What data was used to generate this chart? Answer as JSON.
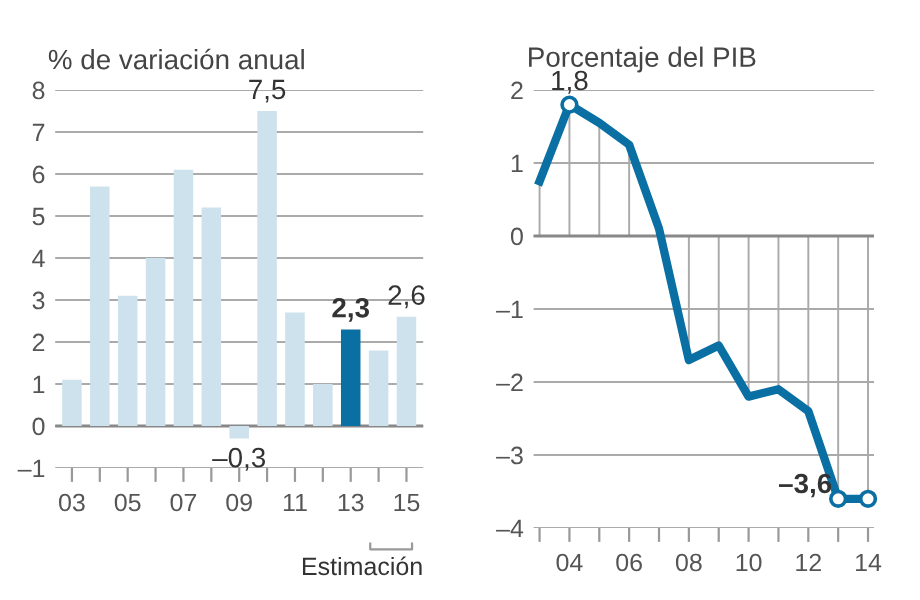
{
  "chart_data": [
    {
      "type": "bar",
      "title": "% de variación anual",
      "categories": [
        "03",
        null,
        "05",
        null,
        "07",
        null,
        "09",
        null,
        "11",
        null,
        "13",
        null,
        "15"
      ],
      "values": [
        1.1,
        5.7,
        3.1,
        4.0,
        6.1,
        5.2,
        -0.3,
        7.5,
        2.7,
        1.0,
        2.3,
        1.8,
        2.6
      ],
      "colors": [
        "#cde2ec",
        "#cde2ec",
        "#cde2ec",
        "#cde2ec",
        "#cde2ec",
        "#cde2ec",
        "#cde2ec",
        "#cde2ec",
        "#cde2ec",
        "#cde2ec",
        "#0a6fa3",
        "#cde2ec",
        "#cde2ec"
      ],
      "value_labels": [
        null,
        null,
        null,
        null,
        null,
        null,
        "–0,3",
        "7,5",
        null,
        null,
        "2,3",
        null,
        "2,6"
      ],
      "ylim": [
        -1,
        8
      ],
      "yticks": [
        {
          "value": -1,
          "label": "–1"
        },
        0,
        1,
        2,
        3,
        4,
        5,
        6,
        7,
        8
      ],
      "grid": "y",
      "annotations": [
        "Estimación"
      ]
    },
    {
      "type": "line",
      "title": "Porcentaje del PIB",
      "series": [
        {
          "color": "#0a6fa3",
          "x": [
            2003,
            2004,
            2005,
            2006,
            2007,
            2008,
            2009,
            2010,
            2011,
            2012,
            2013,
            2014
          ],
          "values": [
            0.75,
            1.8,
            1.55,
            1.25,
            0.1,
            -1.7,
            -1.5,
            -2.2,
            -2.1,
            -2.4,
            -3.6,
            -3.6
          ],
          "errors": [
            [
              0,
              0.75
            ],
            [
              0,
              1.8
            ],
            [
              0,
              1.55
            ],
            [
              0,
              1.25
            ],
            [
              0,
              0.1
            ],
            [
              -1.7,
              0
            ],
            [
              -1.5,
              0
            ],
            [
              -2.2,
              0
            ],
            [
              -2.1,
              0
            ],
            [
              -2.4,
              0
            ],
            [
              -3.6,
              0
            ],
            [
              -3.6,
              0
            ]
          ]
        },
        {
          "type": "scatter",
          "color": "#0a6fa3",
          "x": [
            2004,
            2013,
            2014
          ],
          "values": [
            1.8,
            -3.6,
            -3.6
          ],
          "value_labels": [
            "1,8",
            "–3,6",
            null
          ],
          "marker": "circle"
        }
      ],
      "xlim": [
        2002.8,
        2014.2
      ],
      "xticks": [
        {
          "value": 2003,
          "label": null
        },
        {
          "value": 2004,
          "label": "04"
        },
        {
          "value": 2005,
          "label": null
        },
        {
          "value": 2006,
          "label": "06"
        },
        {
          "value": 2007,
          "label": null
        },
        {
          "value": 2008,
          "label": "08"
        },
        {
          "value": 2009,
          "label": null
        },
        {
          "value": 2010,
          "label": "10"
        },
        {
          "value": 2011,
          "label": null
        },
        {
          "value": 2012,
          "label": "12"
        },
        {
          "value": 2013,
          "label": null
        },
        {
          "value": 2014,
          "label": "14"
        }
      ],
      "ylim": [
        -4,
        2
      ],
      "yticks": [
        {
          "value": -4,
          "label": "–4"
        },
        {
          "value": -3,
          "label": "–3"
        },
        {
          "value": -2,
          "label": "–2"
        },
        {
          "value": -1,
          "label": "–1"
        },
        0,
        1,
        2
      ],
      "grid": "y"
    }
  ]
}
